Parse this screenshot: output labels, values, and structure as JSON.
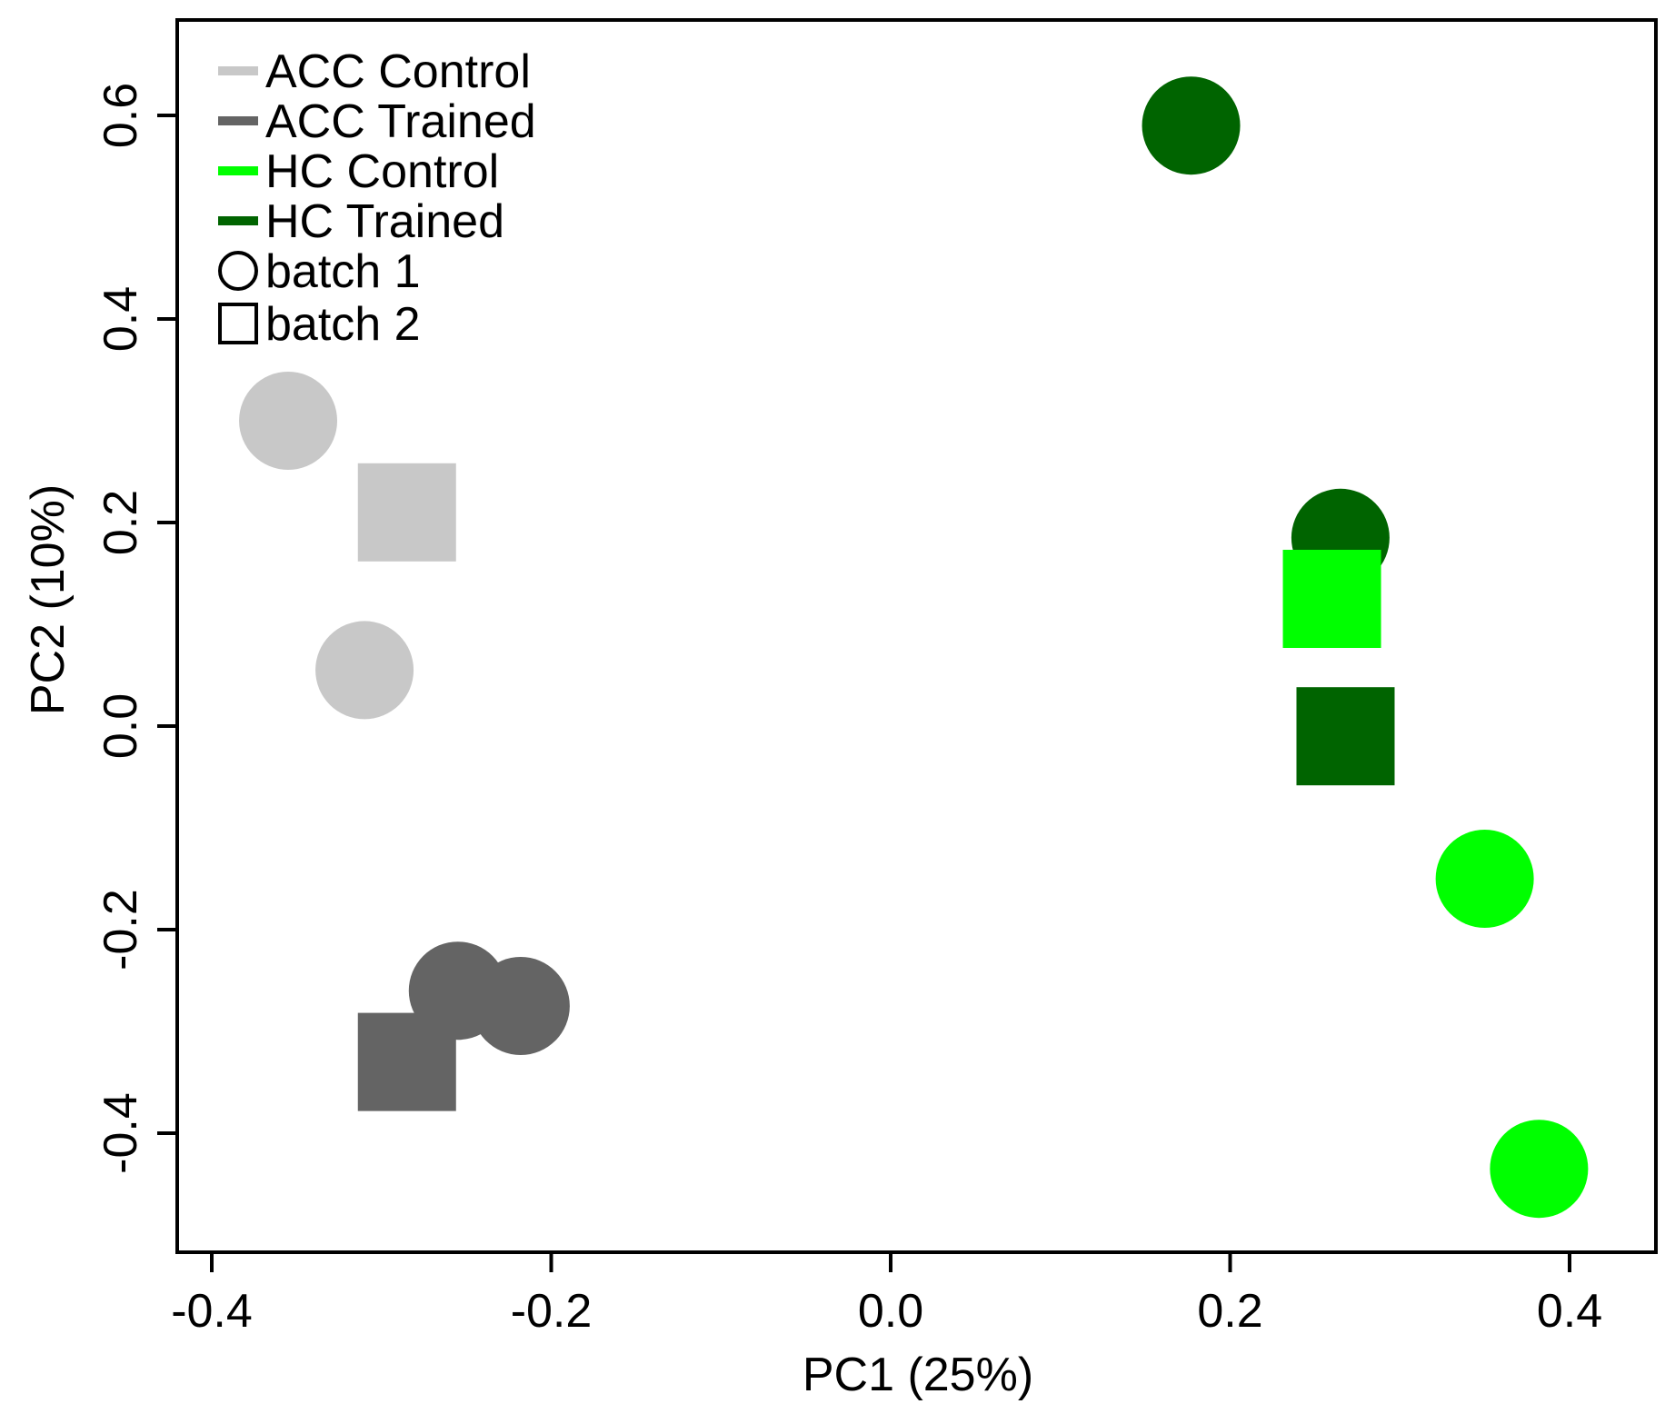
{
  "chart_data": {
    "type": "scatter",
    "title": "",
    "xlabel": "PC1 (25%)",
    "ylabel": "PC2 (10%)",
    "xlim": [
      -0.42,
      0.45
    ],
    "ylim": [
      -0.52,
      0.7
    ],
    "grid": false,
    "legend_position": "top-left",
    "x_ticks": [
      {
        "value": -0.4,
        "label": "-0.4"
      },
      {
        "value": -0.2,
        "label": "-0.2"
      },
      {
        "value": 0.0,
        "label": "0.0"
      },
      {
        "value": 0.2,
        "label": "0.2"
      },
      {
        "value": 0.4,
        "label": "0.4"
      }
    ],
    "y_ticks": [
      {
        "value": -0.4,
        "label": "-0.4"
      },
      {
        "value": -0.2,
        "label": "-0.2"
      },
      {
        "value": 0.0,
        "label": "0.0"
      },
      {
        "value": 0.2,
        "label": "0.2"
      },
      {
        "value": 0.4,
        "label": "0.4"
      },
      {
        "value": 0.6,
        "label": "0.6"
      }
    ],
    "groups": [
      {
        "key": "acc_control",
        "label": "ACC Control",
        "color": "#c8c8c8"
      },
      {
        "key": "acc_trained",
        "label": "ACC Trained",
        "color": "#646464"
      },
      {
        "key": "hc_control",
        "label": "HC Control",
        "color": "#00ff00"
      },
      {
        "key": "hc_trained",
        "label": "HC Trained",
        "color": "#006400"
      }
    ],
    "batches": [
      {
        "key": "batch1",
        "label": "batch 1",
        "shape": "circle"
      },
      {
        "key": "batch2",
        "label": "batch 2",
        "shape": "square"
      }
    ],
    "points": [
      {
        "group": "acc_control",
        "batch": "batch1",
        "x": -0.355,
        "y": 0.3
      },
      {
        "group": "acc_control",
        "batch": "batch2",
        "x": -0.285,
        "y": 0.21
      },
      {
        "group": "acc_control",
        "batch": "batch1",
        "x": -0.31,
        "y": 0.055
      },
      {
        "group": "acc_trained",
        "batch": "batch1",
        "x": -0.255,
        "y": -0.26
      },
      {
        "group": "acc_trained",
        "batch": "batch1",
        "x": -0.218,
        "y": -0.275
      },
      {
        "group": "acc_trained",
        "batch": "batch2",
        "x": -0.285,
        "y": -0.33
      },
      {
        "group": "hc_trained",
        "batch": "batch1",
        "x": 0.177,
        "y": 0.59
      },
      {
        "group": "hc_trained",
        "batch": "batch1",
        "x": 0.265,
        "y": 0.185
      },
      {
        "group": "hc_control",
        "batch": "batch2",
        "x": 0.26,
        "y": 0.125
      },
      {
        "group": "hc_trained",
        "batch": "batch2",
        "x": 0.268,
        "y": -0.01
      },
      {
        "group": "hc_control",
        "batch": "batch1",
        "x": 0.35,
        "y": -0.15
      },
      {
        "group": "hc_control",
        "batch": "batch1",
        "x": 0.382,
        "y": -0.435
      }
    ]
  }
}
